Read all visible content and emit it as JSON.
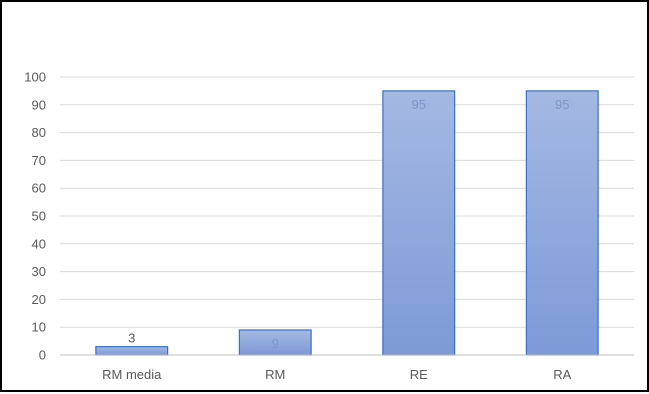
{
  "chart_data": {
    "type": "bar",
    "title": "",
    "xlabel": "",
    "ylabel": "",
    "categories": [
      "RM media",
      "RM",
      "RE",
      "RA"
    ],
    "values": [
      3,
      9,
      95,
      95
    ],
    "data_labels": [
      "3",
      "9",
      "95",
      "95"
    ],
    "ylim": [
      0,
      100
    ],
    "yticks": [
      "0",
      "10",
      "20",
      "30",
      "40",
      "50",
      "60",
      "70",
      "80",
      "90",
      "100"
    ],
    "grid": true,
    "legend": "none",
    "colors": {
      "bar_fill_top": "#a4b8e2",
      "bar_fill_bottom": "#7d9ad8",
      "bar_stroke": "#3a70c4",
      "gridline": "#d9d9d9",
      "axis_line": "#bfbfbf",
      "tick_text": "#595959",
      "data_label_outside": "#595959",
      "data_label_inside": "#7f96c8"
    }
  }
}
